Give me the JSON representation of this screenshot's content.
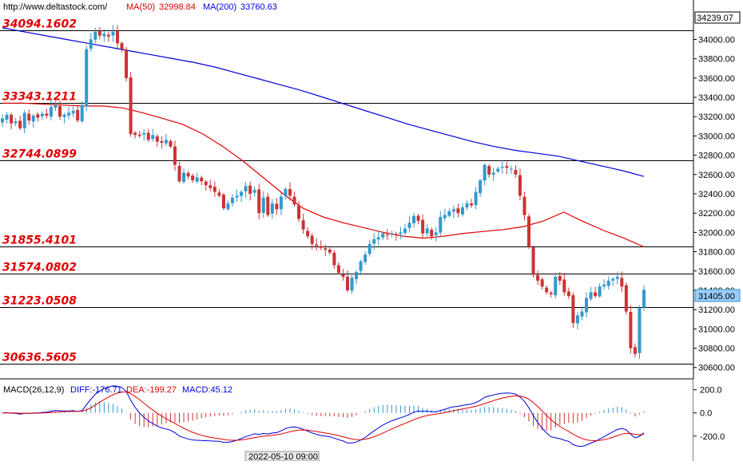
{
  "header": {
    "source": "http://www.deltastock.com/",
    "ma50_label": "MA(50)",
    "ma50_value": "32998.84",
    "ma200_label": "MA(200)",
    "ma200_value": "33760.63",
    "top_price_box": "34239.07",
    "current_price_box": "31405.00"
  },
  "colors": {
    "ma50": "#e00000",
    "ma200": "#0000dd",
    "bull": "#3399cc",
    "bear": "#cc3333",
    "level_label": "#e00000",
    "macd_line": "#0000dd",
    "dea_line": "#e00000",
    "hist_pos": "#3399cc",
    "hist_neg": "#cc3333"
  },
  "levels": [
    {
      "value": 34094.1602,
      "label": "34094.1602"
    },
    {
      "value": 33343.1211,
      "label": "33343.1211"
    },
    {
      "value": 32744.0899,
      "label": "32744.0899"
    },
    {
      "value": 31855.4101,
      "label": "31855.4101"
    },
    {
      "value": 31574.0802,
      "label": "31574.0802"
    },
    {
      "value": 31223.0508,
      "label": "31223.0508"
    },
    {
      "value": 30636.5605,
      "label": "30636.5605"
    }
  ],
  "macd": {
    "title": "MACD(26,12,9)",
    "diff_label": "DIFF:-176.71",
    "dea_label": "DEA:-199.27",
    "macd_label": "MACD:45.12",
    "ticks": [
      "200.0",
      "0.0",
      "-200.0"
    ],
    "tick_values": [
      200,
      0,
      -200
    ],
    "ylim": [
      -360,
      260
    ]
  },
  "xaxis": {
    "date_label": "2022-05-10 09:00"
  },
  "chart_data": {
    "type": "candlestick",
    "ylim": [
      30540,
      34260
    ],
    "yticks": [
      30600,
      30800,
      31000,
      31200,
      31400,
      31600,
      31800,
      32000,
      32200,
      32400,
      32600,
      32800,
      33000,
      33200,
      33400,
      33600,
      33800,
      34000
    ],
    "ytick_labels": [
      "30600.00",
      "30800.00",
      "31000.00",
      "31200.00",
      "31400.00",
      "31600.00",
      "31800.00",
      "32000.00",
      "32200.00",
      "32400.00",
      "32600.00",
      "32800.00",
      "33000.00",
      "33200.00",
      "33400.00",
      "33600.00",
      "33800.00",
      "34000.00"
    ],
    "close_path": [
      33180,
      33220,
      33130,
      33150,
      33080,
      33240,
      33160,
      33210,
      33190,
      33230,
      33210,
      33300,
      33320,
      33200,
      33220,
      33240,
      33260,
      33160,
      33320,
      33900,
      34000,
      34080,
      34040,
      34060,
      34030,
      34080,
      33960,
      33900,
      33600,
      33020,
      33010,
      33000,
      33030,
      32960,
      33010,
      32940,
      32930,
      32960,
      32890,
      32700,
      32530,
      32620,
      32580,
      32540,
      32570,
      32530,
      32490,
      32460,
      32420,
      32380,
      32250,
      32300,
      32360,
      32380,
      32420,
      32480,
      32400,
      32440,
      32200,
      32360,
      32180,
      32300,
      32240,
      32370,
      32450,
      32380,
      32290,
      32140,
      32030,
      31960,
      31880,
      31860,
      31840,
      31820,
      31790,
      31660,
      31580,
      31540,
      31400,
      31530,
      31590,
      31700,
      31770,
      31880,
      31930,
      31950,
      31990,
      31970,
      31990,
      31980,
      32000,
      32040,
      32100,
      32170,
      32120,
      31990,
      32040,
      31960,
      32000,
      32160,
      32180,
      32220,
      32240,
      32200,
      32260,
      32300,
      32280,
      32420,
      32540,
      32700,
      32600,
      32620,
      32660,
      32680,
      32670,
      32660,
      32600,
      32380,
      32180,
      31850,
      31560,
      31500,
      31440,
      31380,
      31360,
      31540,
      31500,
      31380,
      31340,
      31060,
      31140,
      31180,
      31320,
      31380,
      31340,
      31440,
      31460,
      31500,
      31520,
      31540,
      31440,
      31180,
      30800,
      30740,
      31220,
      31405
    ],
    "ma50_path": [
      33340,
      33340,
      33330,
      33320,
      33310,
      33310,
      33290,
      33240,
      33180,
      33120,
      33020,
      32890,
      32740,
      32570,
      32400,
      32250,
      32160,
      32100,
      32050,
      32000,
      31960,
      31940,
      31960,
      31990,
      32010,
      32030,
      32060,
      32120,
      32210,
      32110,
      32020,
      31940,
      31850
    ],
    "ma200_path": [
      34120,
      34080,
      34040,
      34000,
      33960,
      33920,
      33880,
      33840,
      33800,
      33760,
      33710,
      33650,
      33590,
      33530,
      33470,
      33400,
      33330,
      33260,
      33190,
      33120,
      33060,
      33000,
      32940,
      32890,
      32850,
      32820,
      32790,
      32740,
      32690,
      32640,
      32580
    ]
  }
}
